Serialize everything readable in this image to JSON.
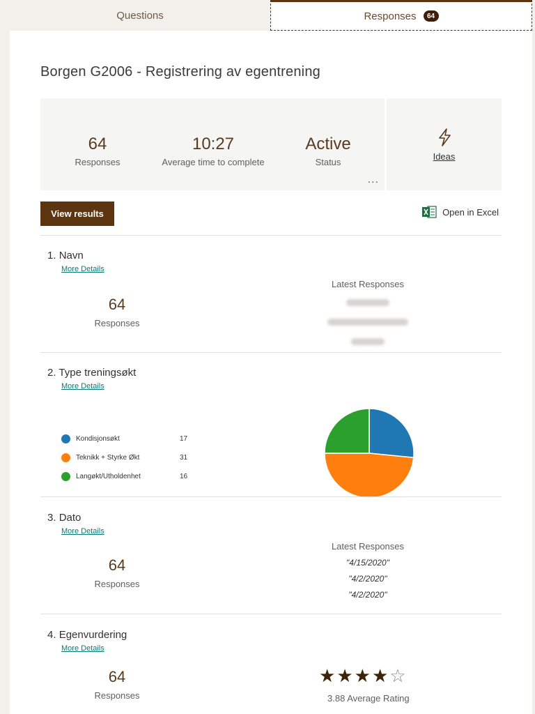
{
  "tabs": [
    {
      "label": "Questions"
    },
    {
      "label": "Responses",
      "badge": "64"
    }
  ],
  "form_title": "Borgen G2006 - Registrering av egentrening",
  "summary": {
    "responses": {
      "value": "64",
      "label": "Responses"
    },
    "avg_time": {
      "value": "10:27",
      "label": "Average time to complete"
    },
    "status": {
      "value": "Active",
      "label": "Status"
    },
    "more": "...",
    "ideas": {
      "label": "Ideas",
      "icon": "lightning-icon"
    }
  },
  "actions": {
    "view_results": "View results",
    "open_excel": "Open in Excel"
  },
  "questions": [
    {
      "number": "1.",
      "title": "Navn",
      "more_details": "More Details",
      "count": "64",
      "count_label": "Responses",
      "latest_heading": "Latest Responses"
    },
    {
      "number": "2.",
      "title": "Type treningsøkt",
      "more_details": "More Details",
      "options": [
        {
          "label": "Kondisjonsøkt",
          "count": "17",
          "color": "#1f77b4"
        },
        {
          "label": "Teknikk + Styrke Økt",
          "count": "31",
          "color": "#ff7f0e"
        },
        {
          "label": "Langøkt/Utholdenhet",
          "count": "16",
          "color": "#2ca02c"
        }
      ]
    },
    {
      "number": "3.",
      "title": "Dato",
      "more_details": "More Details",
      "count": "64",
      "count_label": "Responses",
      "latest_heading": "Latest Responses",
      "latest": [
        "\"4/15/2020\"",
        "\"4/2/2020\"",
        "\"4/2/2020\""
      ]
    },
    {
      "number": "4.",
      "title": "Egenvurdering",
      "more_details": "More Details",
      "count": "64",
      "count_label": "Responses",
      "rating": 3.88,
      "rating_max": 5,
      "rating_label": "3.88 Average Rating"
    }
  ],
  "chart_data": {
    "type": "pie",
    "categories": [
      "Kondisjonsøkt",
      "Teknikk + Styrke Økt",
      "Langøkt/Utholdenhet"
    ],
    "values": [
      17,
      31,
      16
    ],
    "colors": [
      "#1f77b4",
      "#ff7f0e",
      "#2ca02c"
    ]
  }
}
